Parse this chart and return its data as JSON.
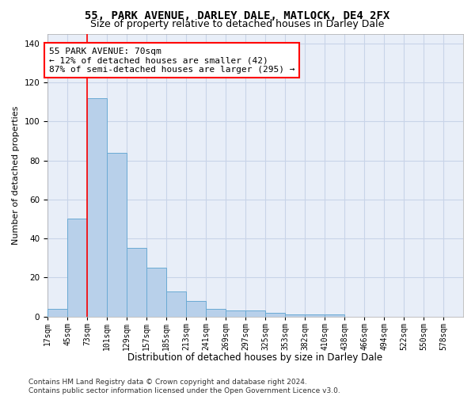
{
  "title1": "55, PARK AVENUE, DARLEY DALE, MATLOCK, DE4 2FX",
  "title2": "Size of property relative to detached houses in Darley Dale",
  "xlabel": "Distribution of detached houses by size in Darley Dale",
  "ylabel": "Number of detached properties",
  "bar_values": [
    4,
    50,
    112,
    84,
    35,
    25,
    13,
    8,
    4,
    3,
    3,
    2,
    1,
    1,
    1,
    0,
    0,
    0,
    0,
    0,
    0
  ],
  "bar_labels": [
    "17sqm",
    "45sqm",
    "73sqm",
    "101sqm",
    "129sqm",
    "157sqm",
    "185sqm",
    "213sqm",
    "241sqm",
    "269sqm",
    "297sqm",
    "325sqm",
    "353sqm",
    "382sqm",
    "410sqm",
    "438sqm",
    "466sqm",
    "494sqm",
    "522sqm",
    "550sqm",
    "578sqm"
  ],
  "bar_color": "#b8d0ea",
  "bar_edge_color": "#6aaad4",
  "annotation_text": "55 PARK AVENUE: 70sqm\n← 12% of detached houses are smaller (42)\n87% of semi-detached houses are larger (295) →",
  "annotation_box_color": "white",
  "annotation_box_edge_color": "red",
  "vline_color": "red",
  "vline_x_bin": 1,
  "ylim": [
    0,
    145
  ],
  "yticks": [
    0,
    20,
    40,
    60,
    80,
    100,
    120,
    140
  ],
  "grid_color": "#c8d4e8",
  "bg_color": "#e8eef8",
  "footnote": "Contains HM Land Registry data © Crown copyright and database right 2024.\nContains public sector information licensed under the Open Government Licence v3.0.",
  "title1_fontsize": 10,
  "title2_fontsize": 9,
  "xlabel_fontsize": 8.5,
  "ylabel_fontsize": 8,
  "annotation_fontsize": 8,
  "footnote_fontsize": 6.5,
  "tick_fontsize": 7
}
